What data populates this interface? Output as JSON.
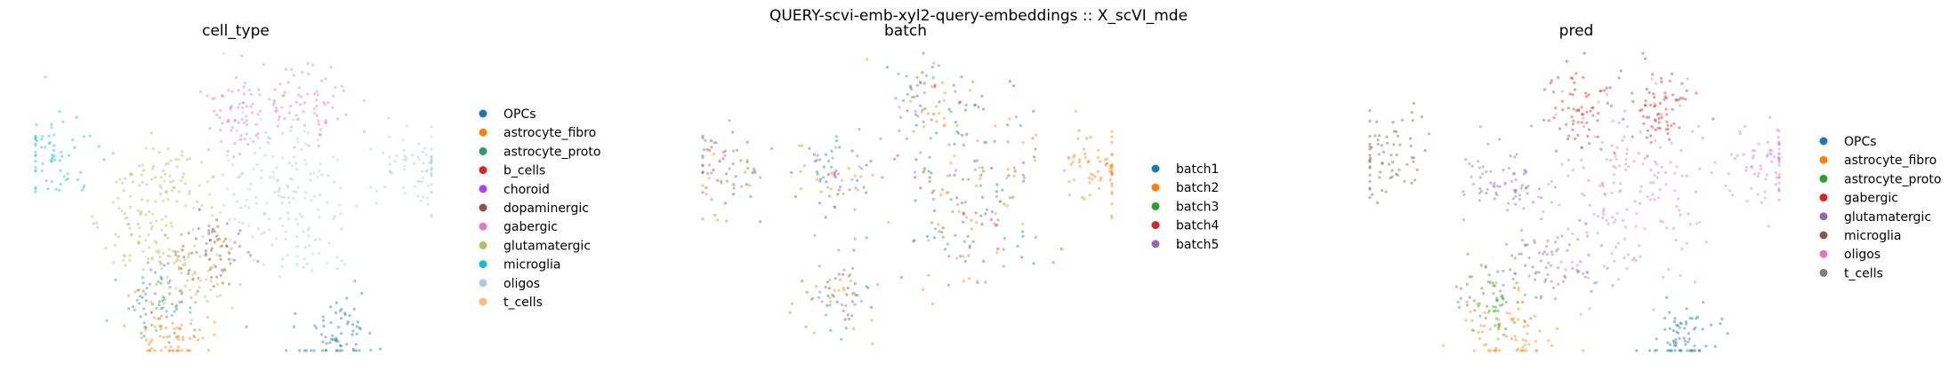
{
  "figure": {
    "suptitle": "QUERY-scvi-emb-xyl2-query-embeddings :: X_scVI_mde"
  },
  "chart_data": [
    {
      "type": "scatter",
      "title": "cell_type",
      "grid": false,
      "legend_placement": "right",
      "legend": [
        {
          "label": "OPCs",
          "color": "#1f77b4"
        },
        {
          "label": "astrocyte_fibro",
          "color": "#ff7f0e"
        },
        {
          "label": "astrocyte_proto",
          "color": "#279e68"
        },
        {
          "label": "b_cells",
          "color": "#d62728"
        },
        {
          "label": "choroid",
          "color": "#aa40fc"
        },
        {
          "label": "dopaminergic",
          "color": "#8c564b"
        },
        {
          "label": "gabergic",
          "color": "#e377c2"
        },
        {
          "label": "glutamatergic",
          "color": "#b5bd61"
        },
        {
          "label": "microglia",
          "color": "#17becf"
        },
        {
          "label": "oligos",
          "color": "#aec7e8"
        },
        {
          "label": "t_cells",
          "color": "#ffbb78"
        }
      ],
      "clusters": [
        {
          "category": "oligos",
          "x": 0.63,
          "y": 0.52
        },
        {
          "category": "oligos",
          "x": 0.97,
          "y": 0.62
        },
        {
          "category": "glutamatergic",
          "x": 0.33,
          "y": 0.57
        },
        {
          "category": "glutamatergic",
          "x": 0.4,
          "y": 0.28
        },
        {
          "category": "glutamatergic",
          "x": 0.26,
          "y": 0.4
        },
        {
          "category": "gabergic",
          "x": 0.52,
          "y": 0.8
        },
        {
          "category": "gabergic",
          "x": 0.68,
          "y": 0.83
        },
        {
          "category": "microglia",
          "x": 0.05,
          "y": 0.65
        },
        {
          "category": "astrocyte_proto",
          "x": 0.3,
          "y": 0.18
        },
        {
          "category": "astrocyte_fibro",
          "x": 0.34,
          "y": 0.05
        },
        {
          "category": "OPCs",
          "x": 0.76,
          "y": 0.05
        },
        {
          "category": "dopaminergic",
          "x": 0.45,
          "y": 0.32
        }
      ]
    },
    {
      "type": "scatter",
      "title": "batch",
      "grid": false,
      "legend_placement": "right",
      "legend": [
        {
          "label": "batch1",
          "color": "#1f77b4"
        },
        {
          "label": "batch2",
          "color": "#ff7f0e"
        },
        {
          "label": "batch3",
          "color": "#2ca02c"
        },
        {
          "label": "batch4",
          "color": "#d62728"
        },
        {
          "label": "batch5",
          "color": "#9467bd"
        }
      ],
      "clusters": [
        {
          "category": "mixed",
          "x": 0.65,
          "y": 0.5
        },
        {
          "category": "mixed",
          "x": 0.33,
          "y": 0.6
        },
        {
          "category": "mixed",
          "x": 0.05,
          "y": 0.6
        },
        {
          "category": "mixed",
          "x": 0.33,
          "y": 0.2
        },
        {
          "category": "mixed",
          "x": 0.55,
          "y": 0.85
        },
        {
          "category": "batch2",
          "x": 0.97,
          "y": 0.62
        }
      ]
    },
    {
      "type": "scatter",
      "title": "pred",
      "grid": false,
      "legend_placement": "right",
      "legend": [
        {
          "label": "OPCs",
          "color": "#1f77b4"
        },
        {
          "label": "astrocyte_fibro",
          "color": "#ff7f0e"
        },
        {
          "label": "astrocyte_proto",
          "color": "#2ca02c"
        },
        {
          "label": "gabergic",
          "color": "#d62728"
        },
        {
          "label": "glutamatergic",
          "color": "#9467bd"
        },
        {
          "label": "microglia",
          "color": "#8c564b"
        },
        {
          "label": "oligos",
          "color": "#e377c2"
        },
        {
          "label": "t_cells",
          "color": "#7f7f7f"
        }
      ],
      "clusters": [
        {
          "category": "oligos",
          "x": 0.63,
          "y": 0.52
        },
        {
          "category": "oligos",
          "x": 0.97,
          "y": 0.62
        },
        {
          "category": "glutamatergic",
          "x": 0.33,
          "y": 0.57
        },
        {
          "category": "glutamatergic",
          "x": 0.45,
          "y": 0.3
        },
        {
          "category": "gabergic",
          "x": 0.52,
          "y": 0.8
        },
        {
          "category": "gabergic",
          "x": 0.7,
          "y": 0.82
        },
        {
          "category": "microglia",
          "x": 0.05,
          "y": 0.65
        },
        {
          "category": "astrocyte_proto",
          "x": 0.3,
          "y": 0.18
        },
        {
          "category": "astrocyte_fibro",
          "x": 0.34,
          "y": 0.05
        },
        {
          "category": "OPCs",
          "x": 0.76,
          "y": 0.05
        }
      ]
    }
  ]
}
